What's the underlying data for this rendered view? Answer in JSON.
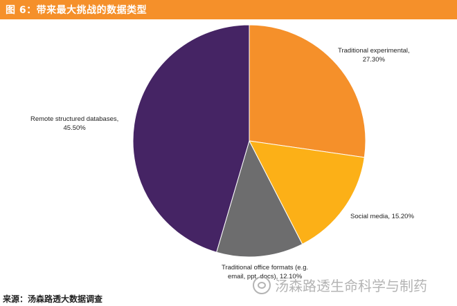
{
  "header": {
    "title": "图 6：带来最大挑战的数据类型",
    "color": "#f5902a"
  },
  "footer": {
    "source": "来源：汤森路透大数据调查"
  },
  "watermark": {
    "text": "汤森路透生命科学与制药",
    "icon": "wechat-icon"
  },
  "chart_data": {
    "type": "pie",
    "title": "图 6：带来最大挑战的数据类型",
    "slices": [
      {
        "name": "Traditional experimental,",
        "pct_label": "27.30%",
        "value": 27.3,
        "color": "#f5902a"
      },
      {
        "name": "Social media,",
        "pct_label": "15.20%",
        "value": 15.2,
        "color": "#fcb017"
      },
      {
        "name": "Traditional office formats (e.g. email, ppt, docs),",
        "pct_label": "12.10%",
        "value": 12.1,
        "color": "#6d6d6e"
      },
      {
        "name": "Remote structured databases,",
        "pct_label": "45.50%",
        "value": 45.5,
        "color": "#452464"
      }
    ],
    "legend": "none",
    "start": "12 o'clock, clockwise"
  }
}
